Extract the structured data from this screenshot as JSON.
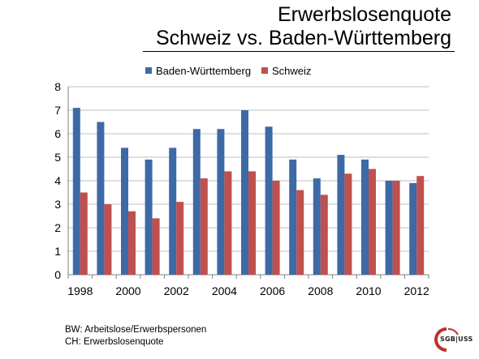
{
  "title": {
    "line1": "Erwerbslosenquote",
    "line2": "Schweiz vs. Baden-Württemberg"
  },
  "chart_data": {
    "type": "bar",
    "categories": [
      "1998",
      "1999",
      "2000",
      "2001",
      "2002",
      "2003",
      "2004",
      "2005",
      "2006",
      "2007",
      "2008",
      "2009",
      "2010",
      "2011",
      "2012"
    ],
    "x_tick_labels": [
      "1998",
      "2000",
      "2002",
      "2004",
      "2006",
      "2008",
      "2010",
      "2012"
    ],
    "series": [
      {
        "name": "Baden-Württemberg",
        "color": "#3D6AA6",
        "values": [
          7.1,
          6.5,
          5.4,
          4.9,
          5.4,
          6.2,
          6.2,
          7.0,
          6.3,
          4.9,
          4.1,
          5.1,
          4.9,
          4.0,
          3.9
        ]
      },
      {
        "name": "Schweiz",
        "color": "#C0504D",
        "values": [
          3.5,
          3.0,
          2.7,
          2.4,
          3.1,
          4.1,
          4.4,
          4.4,
          4.0,
          3.6,
          3.4,
          4.3,
          4.5,
          4.0,
          4.2
        ]
      }
    ],
    "ylim": [
      0,
      8
    ],
    "yticks": [
      0,
      1,
      2,
      3,
      4,
      5,
      6,
      7,
      8
    ],
    "grid": true,
    "legend": "top"
  },
  "notes": {
    "line1": "BW: Arbeitslose/Erwerbspersonen",
    "line2": "CH: Erwerbslosenquote"
  },
  "logo": {
    "text": "SGB|USS",
    "accent_color": "#C0312B"
  }
}
